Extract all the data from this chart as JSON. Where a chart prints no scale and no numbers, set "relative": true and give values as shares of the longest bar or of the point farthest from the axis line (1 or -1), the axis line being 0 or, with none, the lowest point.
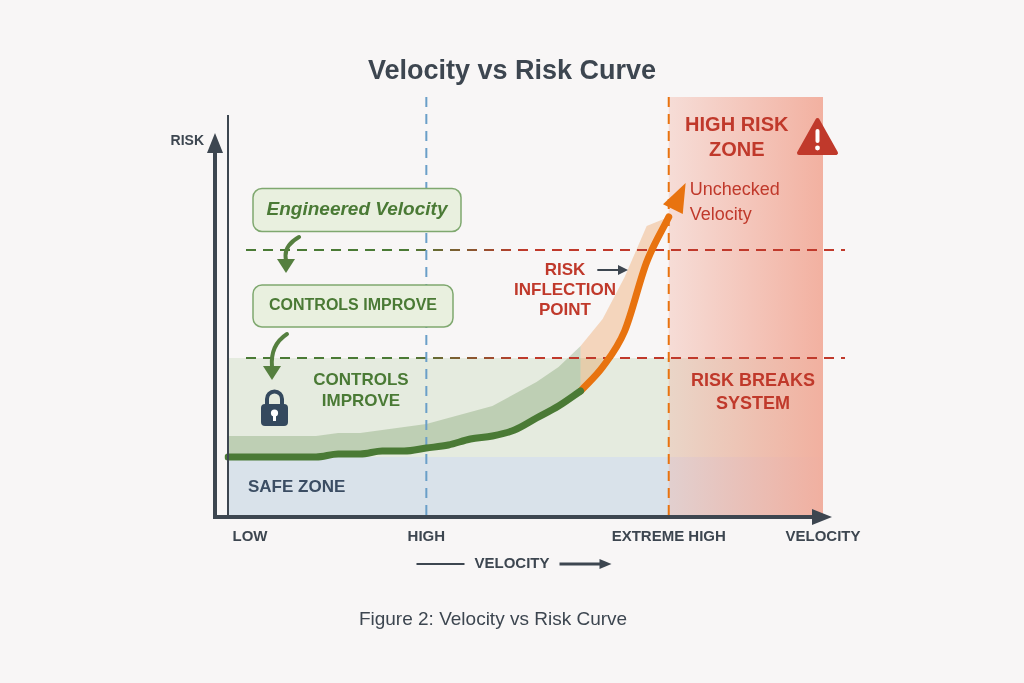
{
  "chart_data": {
    "type": "line",
    "title": "Velocity vs Risk Curve",
    "xlabel": "VELOCITY",
    "relative": true,
    "categories": [
      null,
      "LOW",
      null,
      null,
      null,
      null,
      null,
      null,
      null,
      "HIGH",
      null,
      null,
      null,
      null,
      null,
      null,
      null,
      null,
      null,
      null,
      "EXTREME HIGH",
      null,
      null,
      null,
      null,
      null,
      null,
      "VELOCITY"
    ],
    "series": [
      {
        "color": "#4a7a35",
        "values": [
          0.2,
          0.2,
          0.2,
          0.2,
          0.2,
          0.21,
          0.21,
          0.22,
          0.22,
          0.23,
          0.24,
          0.26,
          0.27,
          0.29,
          0.33,
          0.37,
          0.42,
          null,
          null,
          null,
          null,
          null,
          null,
          null,
          null,
          null,
          null,
          null
        ],
        "lower": [
          0.2,
          0.2,
          0.2,
          0.2,
          0.2,
          0.21,
          0.21,
          0.22,
          0.22,
          0.23,
          0.24,
          0.26,
          0.27,
          0.29,
          0.33,
          0.37,
          0.42,
          null,
          null,
          null,
          null,
          null,
          null,
          null,
          null,
          null,
          null,
          null
        ],
        "upper": [
          0.27,
          0.27,
          0.27,
          0.27,
          0.27,
          0.28,
          0.28,
          0.29,
          0.3,
          0.31,
          0.33,
          0.35,
          0.37,
          0.41,
          0.45,
          0.5,
          0.57,
          null,
          null,
          null,
          null,
          null,
          null,
          null,
          null,
          null,
          null,
          null
        ]
      },
      {
        "color": "#e8730f",
        "values": [
          null,
          null,
          null,
          null,
          null,
          null,
          null,
          null,
          null,
          null,
          null,
          null,
          null,
          null,
          null,
          null,
          0.42,
          0.5,
          0.62,
          0.85,
          1,
          null,
          null,
          null,
          null,
          null,
          null,
          null
        ],
        "lower": [
          null,
          null,
          null,
          null,
          null,
          null,
          null,
          null,
          null,
          null,
          null,
          null,
          null,
          null,
          null,
          null,
          0.42,
          0.5,
          0.62,
          0.85,
          1,
          null,
          null,
          null,
          null,
          null,
          null,
          null
        ],
        "upper": [
          null,
          null,
          null,
          null,
          null,
          null,
          null,
          null,
          null,
          null,
          null,
          null,
          null,
          null,
          null,
          null,
          0.57,
          0.66,
          0.8,
          0.97,
          1,
          null,
          null,
          null,
          null,
          null,
          null,
          null
        ]
      }
    ],
    "bands": [
      {
        "axis": "y",
        "from": 0,
        "to": 0.2,
        "label": "SAFE ZONE",
        "color": "#d9e2ea"
      },
      {
        "axis": "y",
        "from": 0.2,
        "to": 0.53,
        "label": "CONTROLS IMPROVE",
        "color": "#e5ebdf"
      },
      {
        "axis": "x",
        "from": "EXTREME HIGH",
        "to": "VELOCITY",
        "label": "HIGH RISK ZONE",
        "color": "#f2ad9c"
      }
    ],
    "ref_lines": [
      {
        "axis": "y",
        "value": 0.89,
        "color": "#c0392b",
        "line_style": "dashed"
      },
      {
        "axis": "y",
        "value": 0.53,
        "label": "RISK BREAKS SYSTEM",
        "color": "#c0392b",
        "line_style": "dashed"
      },
      {
        "axis": "x",
        "value": "EXTREME HIGH",
        "color": "#e8730f",
        "line_style": "dashed"
      },
      {
        "axis": "x",
        "value": "HIGH",
        "color": "#6a9fc8",
        "line_style": "dashed"
      }
    ],
    "annotations": [
      "Engineered Velocity",
      "CONTROLS IMPROVE",
      {
        "text": "Unchecked Velocity",
        "x": "EXTREME HIGH",
        "y": 1
      },
      "RISK INFLECTION POINT",
      "Figure 2: Velocity vs Risk Curve",
      "RISK"
    ]
  }
}
